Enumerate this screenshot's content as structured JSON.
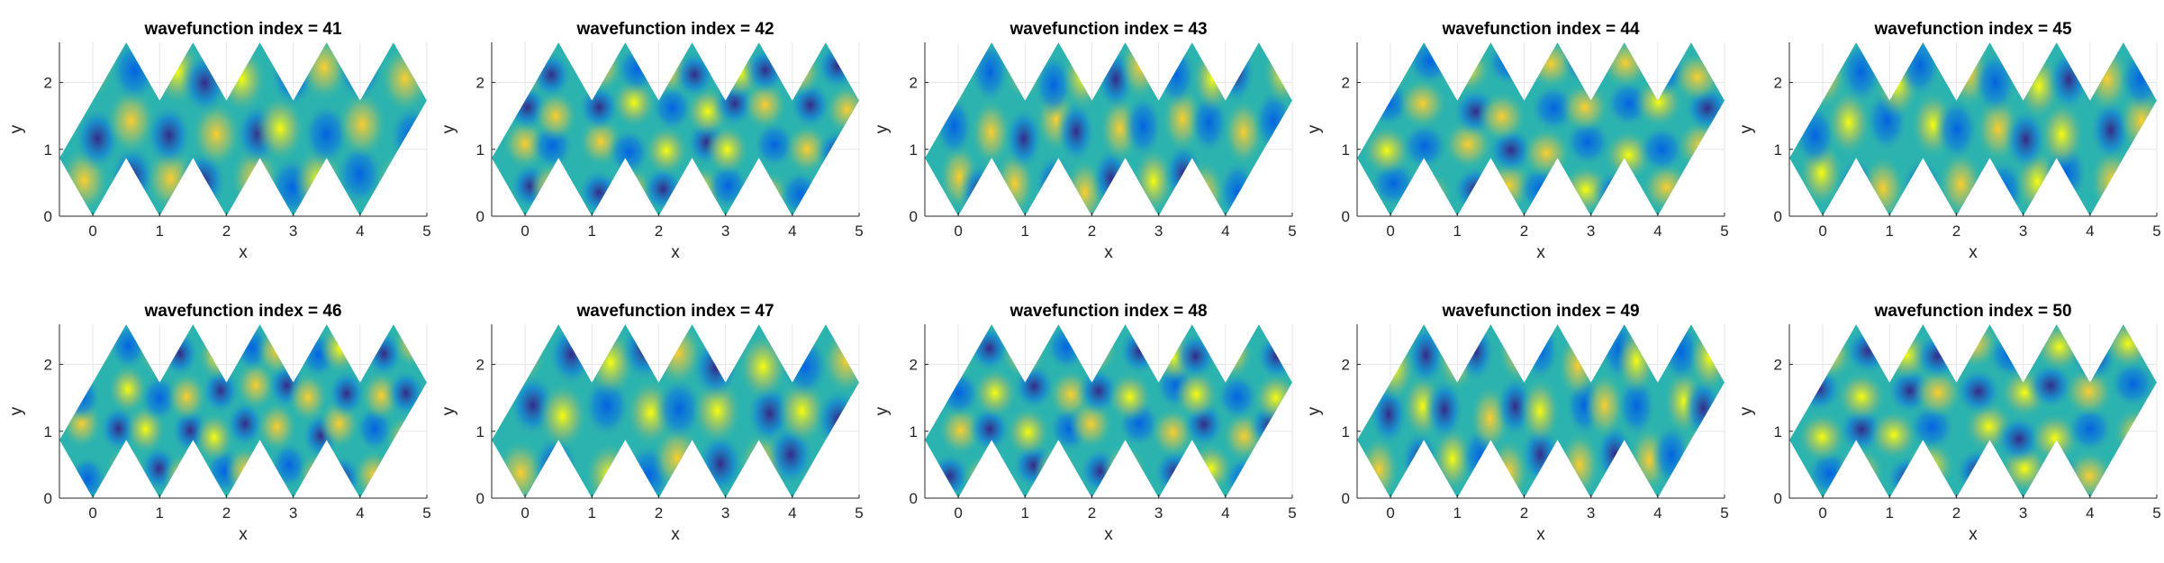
{
  "chart_data": [
    {
      "type": "heatmap",
      "title": "wavefunction index = 41",
      "xlabel": "x",
      "ylabel": "y",
      "xlim": [
        -0.5,
        5
      ],
      "ylim": [
        0,
        2.6
      ],
      "xticks": [
        "0",
        "1",
        "2",
        "3",
        "4",
        "5"
      ],
      "yticks": [
        "0",
        "1",
        "2"
      ],
      "colormap": "parula",
      "grid": true
    },
    {
      "type": "heatmap",
      "title": "wavefunction index = 42",
      "xlabel": "x",
      "ylabel": "y",
      "xlim": [
        -0.5,
        5
      ],
      "ylim": [
        0,
        2.6
      ],
      "xticks": [
        "0",
        "1",
        "2",
        "3",
        "4",
        "5"
      ],
      "yticks": [
        "0",
        "1",
        "2"
      ],
      "colormap": "parula",
      "grid": true
    },
    {
      "type": "heatmap",
      "title": "wavefunction index = 43",
      "xlabel": "x",
      "ylabel": "y",
      "xlim": [
        -0.5,
        5
      ],
      "ylim": [
        0,
        2.6
      ],
      "xticks": [
        "0",
        "1",
        "2",
        "3",
        "4",
        "5"
      ],
      "yticks": [
        "0",
        "1",
        "2"
      ],
      "colormap": "parula",
      "grid": true
    },
    {
      "type": "heatmap",
      "title": "wavefunction index = 44",
      "xlabel": "x",
      "ylabel": "y",
      "xlim": [
        -0.5,
        5
      ],
      "ylim": [
        0,
        2.6
      ],
      "xticks": [
        "0",
        "1",
        "2",
        "3",
        "4",
        "5"
      ],
      "yticks": [
        "0",
        "1",
        "2"
      ],
      "colormap": "parula",
      "grid": true
    },
    {
      "type": "heatmap",
      "title": "wavefunction index = 45",
      "xlabel": "x",
      "ylabel": "y",
      "xlim": [
        -0.5,
        5
      ],
      "ylim": [
        0,
        2.6
      ],
      "xticks": [
        "0",
        "1",
        "2",
        "3",
        "4",
        "5"
      ],
      "yticks": [
        "0",
        "1",
        "2"
      ],
      "colormap": "parula",
      "grid": true
    },
    {
      "type": "heatmap",
      "title": "wavefunction index = 46",
      "xlabel": "x",
      "ylabel": "y",
      "xlim": [
        -0.5,
        5
      ],
      "ylim": [
        0,
        2.6
      ],
      "xticks": [
        "0",
        "1",
        "2",
        "3",
        "4",
        "5"
      ],
      "yticks": [
        "0",
        "1",
        "2"
      ],
      "colormap": "parula",
      "grid": true
    },
    {
      "type": "heatmap",
      "title": "wavefunction index = 47",
      "xlabel": "x",
      "ylabel": "y",
      "xlim": [
        -0.5,
        5
      ],
      "ylim": [
        0,
        2.6
      ],
      "xticks": [
        "0",
        "1",
        "2",
        "3",
        "4",
        "5"
      ],
      "yticks": [
        "0",
        "1",
        "2"
      ],
      "colormap": "parula",
      "grid": true
    },
    {
      "type": "heatmap",
      "title": "wavefunction index = 48",
      "xlabel": "x",
      "ylabel": "y",
      "xlim": [
        -0.5,
        5
      ],
      "ylim": [
        0,
        2.6
      ],
      "xticks": [
        "0",
        "1",
        "2",
        "3",
        "4",
        "5"
      ],
      "yticks": [
        "0",
        "1",
        "2"
      ],
      "colormap": "parula",
      "grid": true
    },
    {
      "type": "heatmap",
      "title": "wavefunction index = 49",
      "xlabel": "x",
      "ylabel": "y",
      "xlim": [
        -0.5,
        5
      ],
      "ylim": [
        0,
        2.6
      ],
      "xticks": [
        "0",
        "1",
        "2",
        "3",
        "4",
        "5"
      ],
      "yticks": [
        "0",
        "1",
        "2"
      ],
      "colormap": "parula",
      "grid": true
    },
    {
      "type": "heatmap",
      "title": "wavefunction index = 50",
      "xlabel": "x",
      "ylabel": "y",
      "xlim": [
        -0.5,
        5
      ],
      "ylim": [
        0,
        2.6
      ],
      "xticks": [
        "0",
        "1",
        "2",
        "3",
        "4",
        "5"
      ],
      "yticks": [
        "0",
        "1",
        "2"
      ],
      "colormap": "parula",
      "grid": true
    }
  ]
}
